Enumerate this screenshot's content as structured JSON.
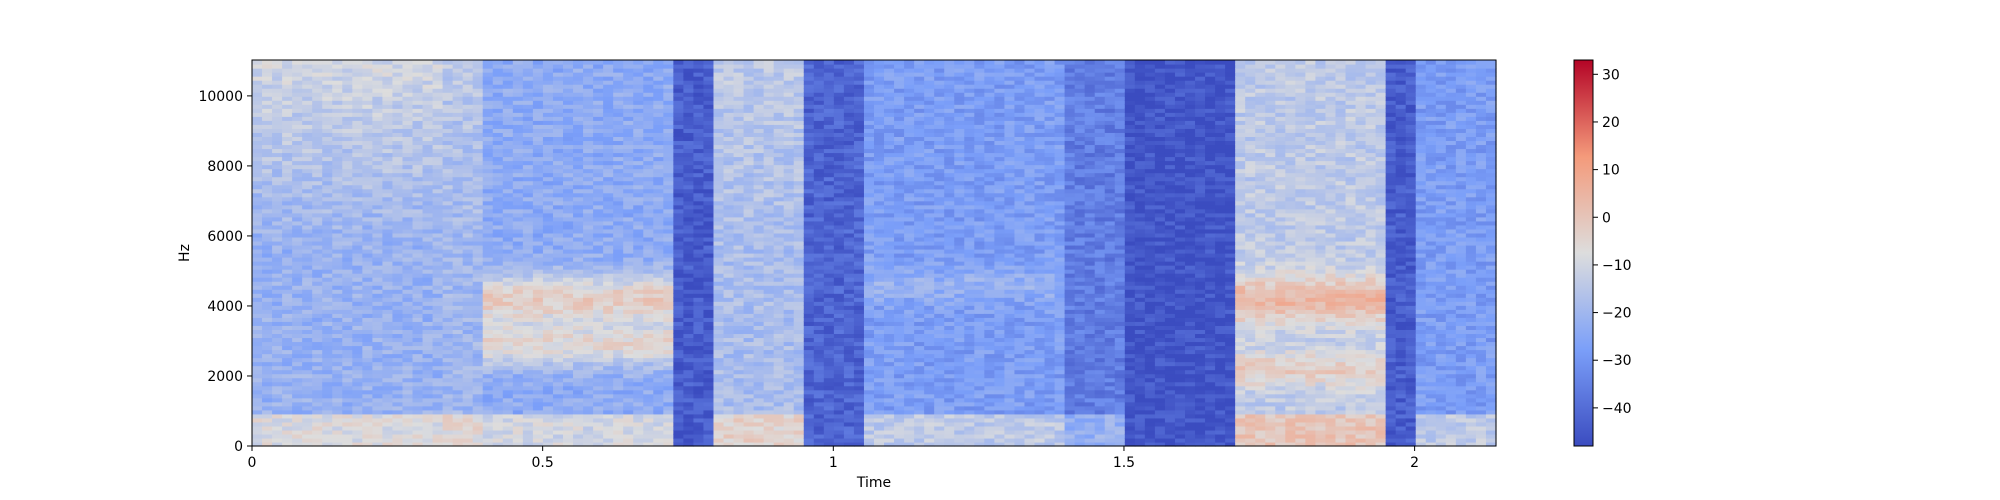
{
  "chart_data": {
    "type": "heatmap",
    "xlabel": "Time",
    "ylabel": "Hz",
    "xlim": [
      0,
      2.14
    ],
    "ylim": [
      0,
      11025
    ],
    "x_ticks": [
      0,
      0.5,
      1,
      1.5,
      2
    ],
    "x_tick_labels": [
      "0",
      "0.5",
      "1",
      "1.5",
      "2"
    ],
    "y_ticks": [
      0,
      2000,
      4000,
      6000,
      8000,
      10000
    ],
    "y_tick_labels": [
      "0",
      "2000",
      "4000",
      "6000",
      "8000",
      "10000"
    ],
    "colorbar": {
      "colormap": "coolwarm",
      "range": [
        -48,
        33
      ],
      "ticks": [
        -40,
        -30,
        -20,
        -10,
        0,
        10,
        20,
        30
      ],
      "tick_labels": [
        "−40",
        "−30",
        "−20",
        "−10",
        "0",
        "10",
        "20",
        "30"
      ],
      "low_color": "#3b4cc0",
      "mid_color": "#dddddd",
      "high_color": "#b40426"
    },
    "time_segments": [
      {
        "t": [
          0.0,
          0.33
        ],
        "level": -22,
        "hf_boost": 12
      },
      {
        "t": [
          0.33,
          0.4
        ],
        "level": -20,
        "hf_boost": 6
      },
      {
        "t": [
          0.4,
          0.72
        ],
        "level": -24,
        "band_4000": 22,
        "band_3000": 18
      },
      {
        "t": [
          0.72,
          0.8
        ],
        "level": -44,
        "hf_boost": 0
      },
      {
        "t": [
          0.8,
          0.95
        ],
        "level": -18,
        "hf_boost": 4
      },
      {
        "t": [
          0.95,
          1.05
        ],
        "level": -42,
        "hf_boost": 0
      },
      {
        "t": [
          1.05,
          1.4
        ],
        "level": -28,
        "band_4500": 6
      },
      {
        "t": [
          1.4,
          1.5
        ],
        "level": -36,
        "hf_boost": 0
      },
      {
        "t": [
          1.5,
          1.69
        ],
        "level": -46,
        "hf_boost": 0
      },
      {
        "t": [
          1.69,
          1.95
        ],
        "level": -14,
        "band_4000": 18,
        "band_2200": 12
      },
      {
        "t": [
          1.95,
          2.0
        ],
        "level": -44,
        "hf_boost": 0
      },
      {
        "t": [
          2.0,
          2.14
        ],
        "level": -28,
        "hf_boost": 0
      }
    ]
  }
}
